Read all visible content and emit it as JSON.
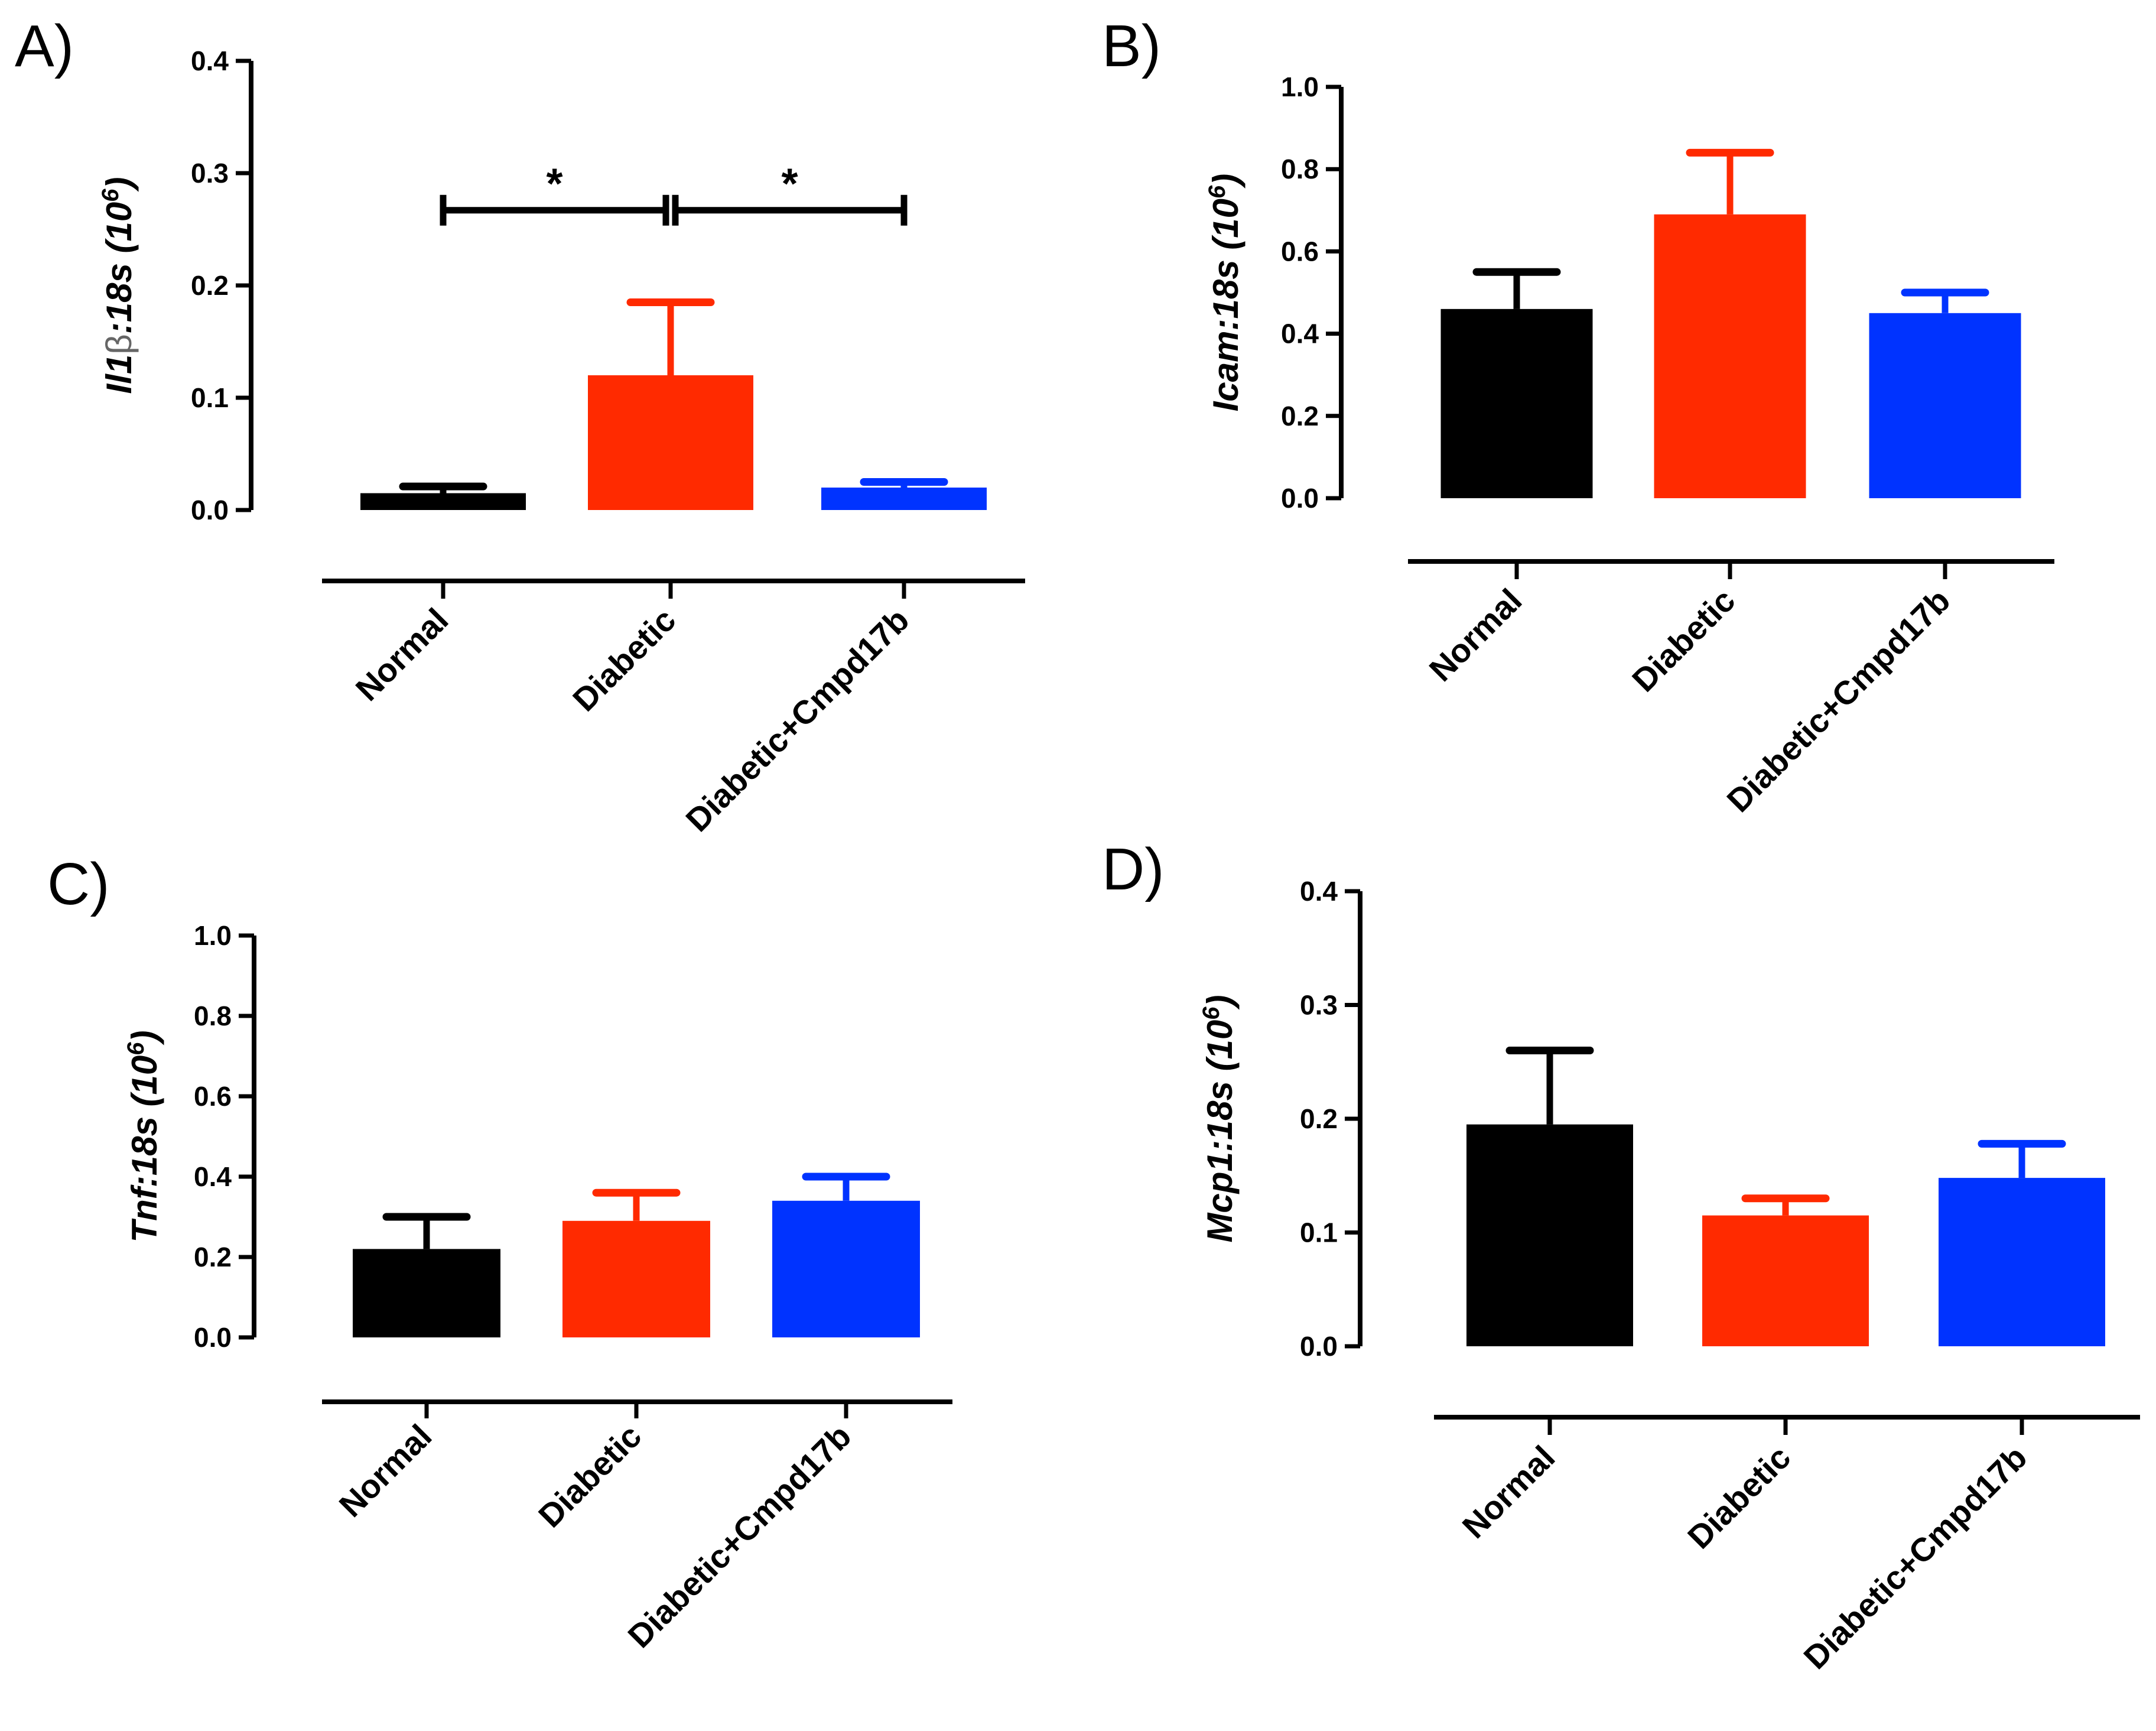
{
  "chart_data": [
    {
      "panel": "A)",
      "type": "bar",
      "ylabel": "Il1β:18s (10⁶)",
      "ylabel_parts": {
        "pre": "Il1",
        "mid": "β",
        "post": ":18s (10",
        "sup": "6",
        "end": ")"
      },
      "ylim": [
        0,
        0.4
      ],
      "yticks": [
        "0.0",
        "0.1",
        "0.2",
        "0.3",
        "0.4"
      ],
      "yticks_values": [
        0,
        0.1,
        0.2,
        0.3,
        0.4
      ],
      "categories": [
        "Normal",
        "Diabetic",
        "Diabetic+Cmpd17b"
      ],
      "values": [
        0.015,
        0.12,
        0.02
      ],
      "errors": [
        0.006,
        0.065,
        0.005
      ],
      "colors": [
        "#000000",
        "#ff2a00",
        "#0033ff"
      ],
      "significance": [
        {
          "from": 0,
          "to": 1,
          "y": 0.267,
          "label": "*"
        },
        {
          "from": 1,
          "to": 2,
          "y": 0.267,
          "label": "*"
        }
      ]
    },
    {
      "panel": "B)",
      "type": "bar",
      "ylabel": "Icam:18s (10⁶)",
      "ylabel_parts": {
        "pre": "Icam:18s (10",
        "sup": "6",
        "end": ")"
      },
      "ylim": [
        0,
        1.0
      ],
      "yticks": [
        "0.0",
        "0.2",
        "0.4",
        "0.6",
        "0.8",
        "1.0"
      ],
      "yticks_values": [
        0,
        0.2,
        0.4,
        0.6,
        0.8,
        1.0
      ],
      "categories": [
        "Normal",
        "Diabetic",
        "Diabetic+Cmpd17b"
      ],
      "values": [
        0.46,
        0.69,
        0.45
      ],
      "errors": [
        0.09,
        0.15,
        0.05
      ],
      "colors": [
        "#000000",
        "#ff2a00",
        "#0033ff"
      ]
    },
    {
      "panel": "C)",
      "type": "bar",
      "ylabel": "Tnf:18s (10⁶)",
      "ylabel_parts": {
        "pre": "Tnf:18s (10",
        "sup": "6",
        "end": ")"
      },
      "ylim": [
        0,
        1.0
      ],
      "yticks": [
        "0.0",
        "0.2",
        "0.4",
        "0.6",
        "0.8",
        "1.0"
      ],
      "yticks_values": [
        0,
        0.2,
        0.4,
        0.6,
        0.8,
        1.0
      ],
      "categories": [
        "Normal",
        "Diabetic",
        "Diabetic+Cmpd17b"
      ],
      "values": [
        0.22,
        0.29,
        0.34
      ],
      "errors": [
        0.08,
        0.07,
        0.06
      ],
      "colors": [
        "#000000",
        "#ff2a00",
        "#0033ff"
      ]
    },
    {
      "panel": "D)",
      "type": "bar",
      "ylabel": "Mcp1:18s (10⁶)",
      "ylabel_parts": {
        "pre": "Mcp1:18s (10",
        "sup": "6",
        "end": ")"
      },
      "ylim": [
        0,
        0.4
      ],
      "yticks": [
        "0.0",
        "0.1",
        "0.2",
        "0.3",
        "0.4"
      ],
      "yticks_values": [
        0,
        0.1,
        0.2,
        0.3,
        0.4
      ],
      "categories": [
        "Normal",
        "Diabetic",
        "Diabetic+Cmpd17b"
      ],
      "values": [
        0.195,
        0.115,
        0.148
      ],
      "errors": [
        0.065,
        0.015,
        0.03
      ],
      "colors": [
        "#000000",
        "#ff2a00",
        "#0033ff"
      ]
    }
  ]
}
